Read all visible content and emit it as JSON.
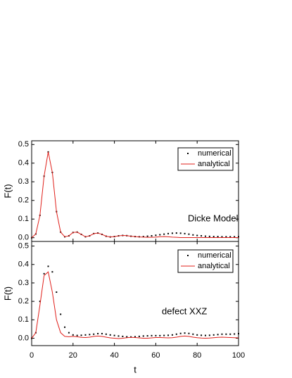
{
  "chart_data": [
    {
      "type": "line",
      "ylabel": "F(t)",
      "annotation": "Dicke Model",
      "legend": "upper right",
      "xlim": [
        0,
        100
      ],
      "xticks": [
        0,
        20,
        40,
        60,
        80,
        100
      ],
      "ylim": [
        -0.02,
        0.52
      ],
      "yticks": [
        {
          "value": 0,
          "label": "0.0"
        },
        0.1,
        0.2,
        0.3,
        0.4,
        0.5
      ],
      "x": [
        0,
        2,
        4,
        6,
        8,
        10,
        12,
        14,
        16,
        18,
        20,
        22,
        24,
        26,
        28,
        30,
        32,
        34,
        36,
        38,
        40,
        42,
        44,
        46,
        48,
        50,
        52,
        54,
        56,
        58,
        60,
        62,
        64,
        66,
        68,
        70,
        72,
        74,
        76,
        78,
        80,
        82,
        84,
        86,
        88,
        90,
        92,
        94,
        96,
        98,
        100
      ],
      "series": [
        {
          "name": "numerical",
          "color": "#000000",
          "style": "dots",
          "values": [
            0,
            0.02,
            0.12,
            0.33,
            0.46,
            0.35,
            0.14,
            0.03,
            0.005,
            0.01,
            0.028,
            0.03,
            0.018,
            0.005,
            0.01,
            0.022,
            0.025,
            0.018,
            0.008,
            0.004,
            0.006,
            0.01,
            0.012,
            0.011,
            0.008,
            0.006,
            0.005,
            0.006,
            0.008,
            0.01,
            0.013,
            0.016,
            0.019,
            0.022,
            0.024,
            0.025,
            0.024,
            0.022,
            0.019,
            0.015,
            0.012,
            0.01,
            0.008,
            0.007,
            0.006,
            0.006,
            0.005,
            0.005,
            0.005,
            0.005,
            0.005
          ]
        },
        {
          "name": "analytical",
          "color": "#e0201b",
          "style": "line",
          "values": [
            0,
            0.02,
            0.12,
            0.33,
            0.46,
            0.35,
            0.14,
            0.03,
            0.005,
            0.01,
            0.028,
            0.03,
            0.018,
            0.005,
            0.01,
            0.022,
            0.025,
            0.018,
            0.008,
            0.004,
            0.006,
            0.01,
            0.012,
            0.011,
            0.008,
            0.006,
            0.004,
            0.003,
            0.002,
            0.002,
            0.003,
            0.005,
            0.006,
            0.005,
            0.003,
            0.002,
            0.001,
            0.001,
            0.001,
            0.001,
            0.001,
            0.001,
            0.001,
            0.001,
            0.001,
            0.001,
            0.001,
            0.001,
            0.001,
            0.001,
            0.001
          ]
        }
      ]
    },
    {
      "type": "line",
      "ylabel": "F(t)",
      "xlabel": "t",
      "annotation": "defect XXZ",
      "legend": "upper right",
      "xlim": [
        0,
        100
      ],
      "xticks": [
        0,
        20,
        40,
        60,
        80,
        100
      ],
      "ylim": [
        -0.04,
        0.525
      ],
      "yticks": [
        {
          "value": 0,
          "label": "0.0"
        },
        0.1,
        0.2,
        0.3,
        0.4,
        0.5
      ],
      "x": [
        0,
        2,
        4,
        6,
        8,
        10,
        12,
        14,
        16,
        18,
        20,
        22,
        24,
        26,
        28,
        30,
        32,
        34,
        36,
        38,
        40,
        42,
        44,
        46,
        48,
        50,
        52,
        54,
        56,
        58,
        60,
        62,
        64,
        66,
        68,
        70,
        72,
        74,
        76,
        78,
        80,
        82,
        84,
        86,
        88,
        90,
        92,
        94,
        96,
        98,
        100
      ],
      "series": [
        {
          "name": "numerical",
          "color": "#000000",
          "style": "dots",
          "values": [
            0,
            0.03,
            0.2,
            0.35,
            0.39,
            0.36,
            0.25,
            0.13,
            0.06,
            0.03,
            0.018,
            0.015,
            0.016,
            0.018,
            0.02,
            0.022,
            0.025,
            0.025,
            0.022,
            0.018,
            0.015,
            0.012,
            0.01,
            0.008,
            0.007,
            0.008,
            0.01,
            0.012,
            0.013,
            0.014,
            0.014,
            0.014,
            0.015,
            0.016,
            0.018,
            0.022,
            0.026,
            0.028,
            0.026,
            0.022,
            0.018,
            0.016,
            0.015,
            0.016,
            0.018,
            0.02,
            0.022,
            0.022,
            0.022,
            0.023,
            0.025
          ]
        },
        {
          "name": "analytical",
          "color": "#e0201b",
          "style": "line",
          "values": [
            0,
            0.03,
            0.18,
            0.34,
            0.36,
            0.25,
            0.1,
            0.03,
            0.01,
            0.008,
            0.01,
            0.008,
            0.005,
            0.004,
            0.006,
            0.01,
            0.012,
            0.01,
            0.006,
            0.002,
            0,
            -0.002,
            0,
            0.003,
            0.005,
            0.004,
            0.002,
            0,
            0,
            0.002,
            0.004,
            0.004,
            0.003,
            0.002,
            0.003,
            0.006,
            0.01,
            0.012,
            0.01,
            0.006,
            0.003,
            0.001,
            0,
            0.001,
            0.003,
            0.005,
            0.006,
            0.005,
            0.004,
            0.003,
            0.002
          ]
        }
      ]
    }
  ]
}
